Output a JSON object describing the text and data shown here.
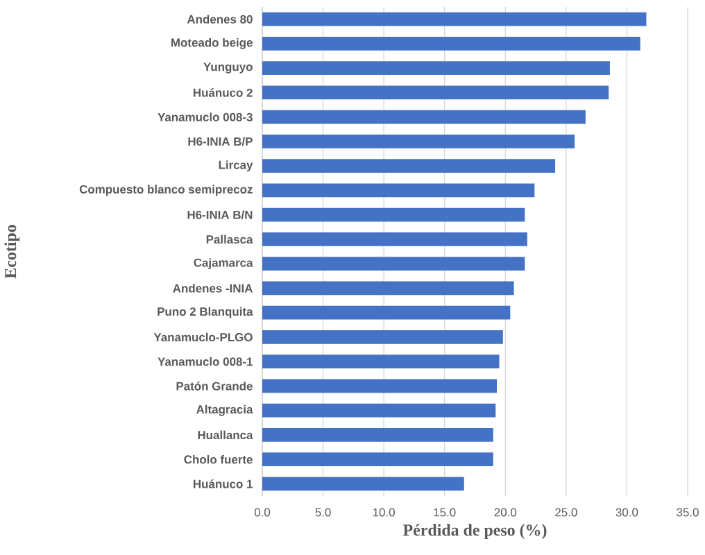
{
  "chart_data": {
    "type": "bar",
    "orientation": "horizontal",
    "xlabel": "Pérdida de peso (%)",
    "ylabel": "Ecotipo",
    "categories": [
      "Andenes 80",
      "Moteado beige",
      "Yunguyo",
      "Huánuco 2",
      "Yanamuclo 008-3",
      "H6-INIA B/P",
      "Lircay",
      "Compuesto blanco semiprecoz",
      "H6-INIA B/N",
      "Pallasca",
      "Cajamarca",
      "Andenes -INIA",
      "Puno 2 Blanquita",
      "Yanamuclo-PLGO",
      "Yanamuclo 008-1",
      "Patón Grande",
      "Altagracia",
      "Huallanca",
      "Cholo fuerte",
      "Huánuco 1"
    ],
    "values": [
      31.6,
      31.1,
      28.6,
      28.5,
      26.6,
      25.7,
      24.1,
      22.4,
      21.6,
      21.8,
      21.6,
      20.7,
      20.4,
      19.8,
      19.5,
      19.3,
      19.2,
      19.0,
      19.0,
      16.6
    ],
    "color": "#4472c4",
    "xlim": [
      0,
      35
    ],
    "xticks": [
      {
        "value": 0,
        "label": "0.0"
      },
      {
        "value": 5,
        "label": "5.0"
      },
      {
        "value": 10,
        "label": "10.0"
      },
      {
        "value": 15,
        "label": "15.0"
      },
      {
        "value": 20,
        "label": "20.0"
      },
      {
        "value": 25,
        "label": "25.0"
      },
      {
        "value": 30,
        "label": "30.0"
      },
      {
        "value": 35,
        "label": "35.0"
      }
    ],
    "grid": "x"
  }
}
